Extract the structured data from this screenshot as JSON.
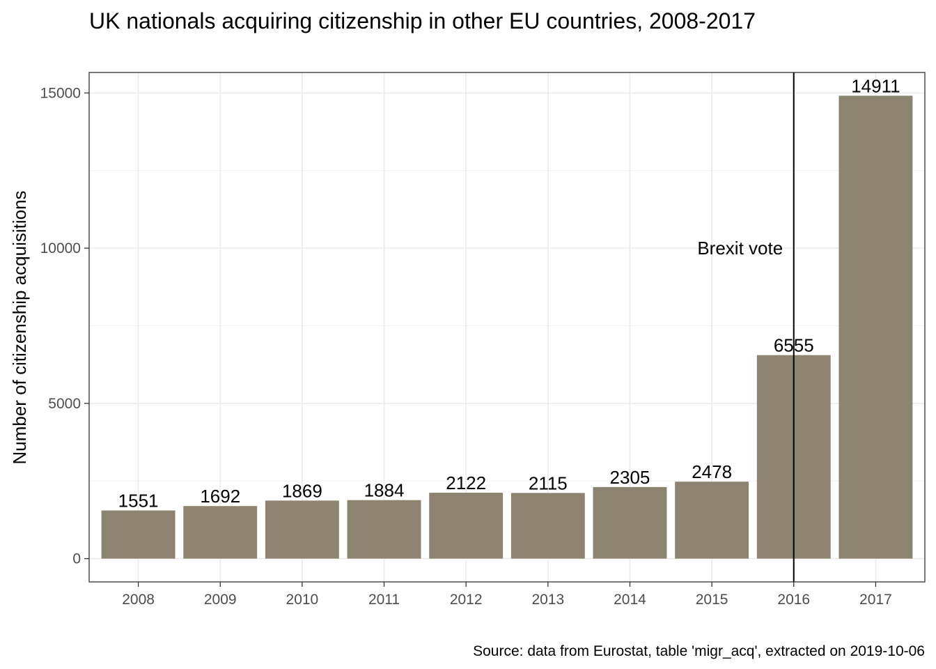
{
  "chart_data": {
    "type": "bar",
    "title": "UK nationals acquiring citizenship in other EU countries, 2008-2017",
    "xlabel": "",
    "ylabel": "Number of citizenship acquisitions",
    "categories": [
      "2008",
      "2009",
      "2010",
      "2011",
      "2012",
      "2013",
      "2014",
      "2015",
      "2016",
      "2017"
    ],
    "values": [
      1551,
      1692,
      1869,
      1884,
      2122,
      2115,
      2305,
      2478,
      6555,
      14911
    ],
    "data_labels": [
      "1551",
      "1692",
      "1869",
      "1884",
      "2122",
      "2115",
      "2305",
      "2478",
      "6555",
      "14911"
    ],
    "ylim": [
      -750,
      15660
    ],
    "yticks": [
      0,
      5000,
      10000,
      15000
    ],
    "ytick_labels": [
      "0",
      "5000",
      "10000",
      "15000"
    ],
    "minor_gridlines": [
      2500,
      7500,
      12500
    ],
    "grid": true,
    "legend": "none",
    "bar_color": "#8c8470",
    "annotation": {
      "text": "Brexit vote",
      "x": "2016",
      "y": 9800
    },
    "vline": {
      "x": "2016",
      "color": "#000000"
    },
    "caption": "Source: data from Eurostat, table 'migr_acq', extracted on 2019-10-06"
  }
}
